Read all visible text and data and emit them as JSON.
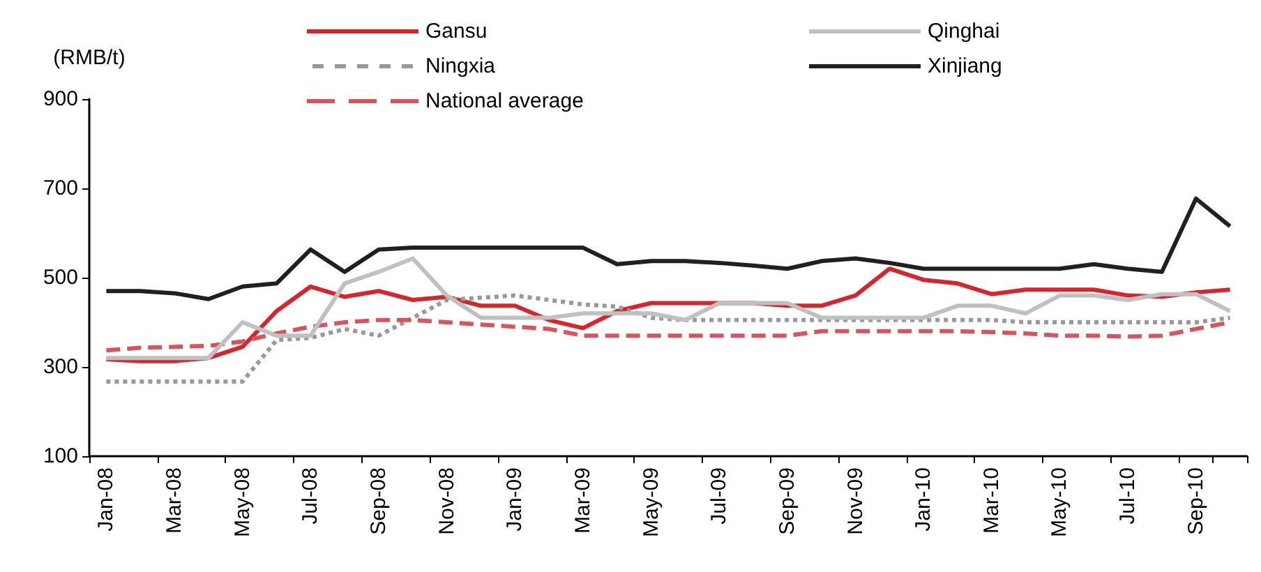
{
  "chart_data": {
    "type": "line",
    "ylabel": "(RMB/t)",
    "categories": [
      "Jan-08",
      null,
      "Mar-08",
      null,
      "May-08",
      null,
      "Jul-08",
      null,
      "Sep-08",
      null,
      "Nov-08",
      null,
      "Jan-09",
      null,
      "Mar-09",
      null,
      "May-09",
      null,
      "Jul-09",
      null,
      "Sep-09",
      null,
      "Nov-09",
      null,
      "Jan-10",
      null,
      "Mar-10",
      null,
      "May-10",
      null,
      "Jul-10",
      null,
      "Sep-10",
      null
    ],
    "ylim": [
      100,
      900
    ],
    "yticks": [
      100,
      300,
      500,
      700,
      900
    ],
    "grid": false,
    "legend": "top",
    "marker": "none",
    "series": [
      {
        "name": "Gansu",
        "color": "#d7262b",
        "line_style": "solid",
        "values": [
          317,
          313,
          313,
          320,
          345,
          425,
          480,
          457,
          470,
          450,
          457,
          437,
          437,
          405,
          387,
          425,
          443,
          443,
          443,
          443,
          437,
          437,
          460,
          520,
          495,
          487,
          463,
          473,
          473,
          473,
          460,
          457,
          467,
          473
        ]
      },
      {
        "name": "Ningxia",
        "color": "#999999",
        "line_style": "dotted",
        "values": [
          267,
          267,
          267,
          267,
          267,
          360,
          365,
          385,
          370,
          410,
          450,
          455,
          460,
          450,
          440,
          435,
          410,
          405,
          405,
          405,
          405,
          405,
          405,
          405,
          405,
          405,
          405,
          400,
          400,
          400,
          400,
          400,
          400,
          410
        ]
      },
      {
        "name": "National average",
        "color": "#d9545a",
        "line_style": "dashed",
        "values": [
          337,
          343,
          345,
          347,
          357,
          375,
          390,
          400,
          405,
          405,
          400,
          395,
          390,
          385,
          370,
          370,
          370,
          370,
          370,
          370,
          370,
          380,
          380,
          380,
          380,
          380,
          378,
          375,
          370,
          370,
          368,
          370,
          385,
          400
        ]
      },
      {
        "name": "Qinghai",
        "color": "#c0c0c0",
        "line_style": "solid",
        "values": [
          320,
          320,
          320,
          320,
          400,
          370,
          370,
          487,
          513,
          543,
          460,
          410,
          410,
          410,
          420,
          420,
          420,
          405,
          443,
          443,
          443,
          410,
          410,
          410,
          410,
          437,
          437,
          420,
          460,
          460,
          450,
          463,
          463,
          425
        ]
      },
      {
        "name": "Xinjiang",
        "color": "#231f20",
        "line_style": "solid",
        "values": [
          470,
          470,
          465,
          452,
          480,
          487,
          563,
          513,
          563,
          567,
          567,
          567,
          567,
          567,
          567,
          530,
          537,
          537,
          533,
          527,
          520,
          537,
          543,
          533,
          520,
          520,
          520,
          520,
          520,
          530,
          520,
          513,
          677,
          615
        ]
      }
    ]
  }
}
